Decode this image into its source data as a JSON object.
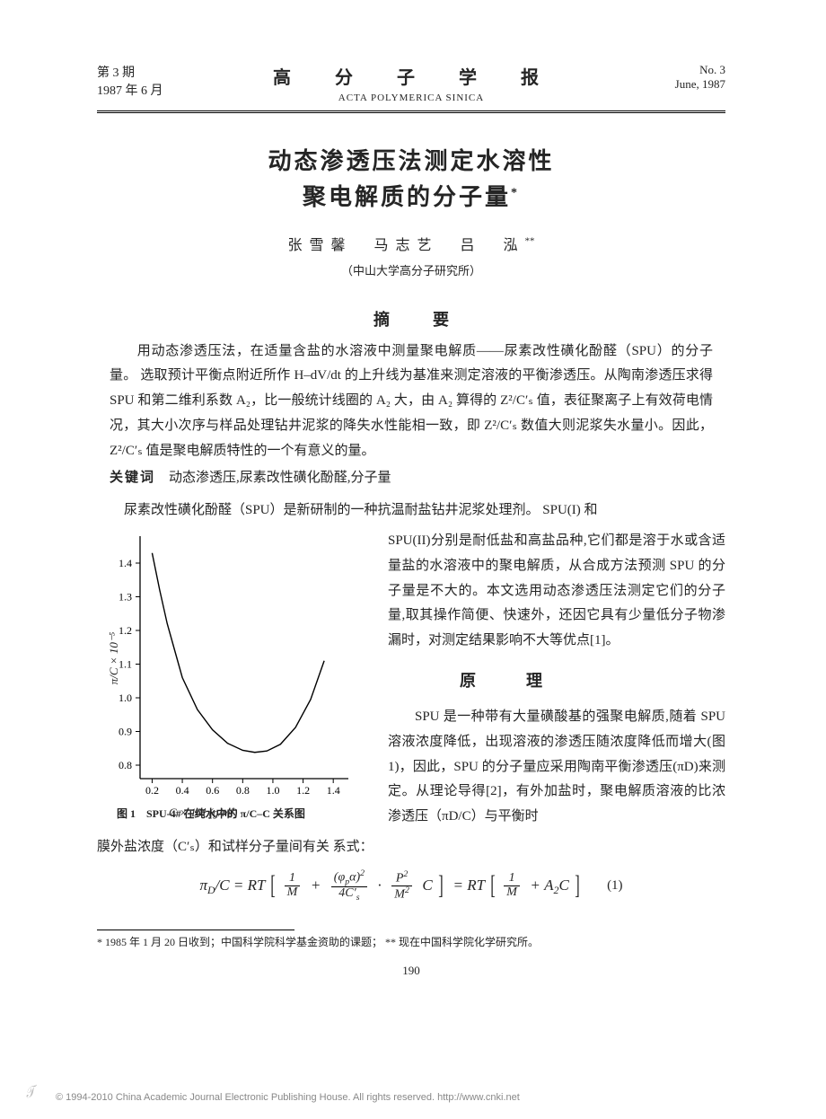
{
  "header": {
    "issue_cn": "第 3 期",
    "date_cn": "1987 年 6 月",
    "journal_cn": "高 分 子 学 报",
    "journal_en": "ACTA POLYMERICA SINICA",
    "issue_en": "No. 3",
    "date_en": "June, 1987"
  },
  "title_l1": "动态渗透压法测定水溶性",
  "title_l2": "聚电解质的分子量",
  "title_mark": "*",
  "authors": "张雪馨　马志艺　吕　泓",
  "author_sup": "**",
  "affiliation": "（中山大学高分子研究所）",
  "abstract_heading": "摘要",
  "abstract_body": "用动态渗透压法，在适量含盐的水溶液中测量聚电解质——尿素改性磺化酚醛（SPU）的分子量。 选取预计平衡点附近所作 H–dV/dt 的上升线为基准来测定溶液的平衡渗透压。从陶南渗透压求得 SPU 和第二维利系数 A₂，比一般统计线圈的 A₂ 大，由 A₂ 算得的 Z²/C′ₛ 值，表征聚离子上有效荷电情况，其大小次序与样品处理钻井泥浆的降失水性能相一致，即 Z²/C′ₛ 数值大则泥浆失水量小。因此，Z²/C′ₛ 值是聚电解质特性的一个有意义的量。",
  "keywords_label": "关键词",
  "keywords": "　动态渗透压,尿素改性磺化酚醛,分子量",
  "lead": "尿素改性磺化酚醛（SPU）是新研制的一种抗温耐盐钻井泥浆处理剂。 SPU(I) 和",
  "para1": "SPU(II)分别是耐低盐和高盐品种,它们都是溶于水或含适量盐的水溶液中的聚电解质，从合成方法预测 SPU 的分子量是不大的。本文选用动态渗透压法测定它们的分子量,取其操作简便、快速外，还因它具有少量低分子物渗漏时，对测定结果影响不大等优点[1]。",
  "section_heading": "原理",
  "para2": "SPU 是一种带有大量磺酸基的强聚电解质,随着 SPU 溶液浓度降低，出现溶液的渗透压随浓度降低而增大(图 1)，因此，SPU 的分子量应采用陶南平衡渗透压(πD)来测定。从理论导得[2]，有外加盐时，聚电解质溶液的比浓渗透压（πD/C）与平衡时",
  "membrane_line": "膜外盐浓度（C′ₛ）和试样分子量间有关 系式：",
  "eq_num": "(1)",
  "figure": {
    "caption": "图 1　SPU-4# 在纯水中的 π/C–C 关系图",
    "xlabel": "C × 10⁴ (g/ml)",
    "ylabel": "π/C × 10⁻⁵",
    "x_ticks": [
      0.2,
      0.4,
      0.6,
      0.8,
      1.0,
      1.2,
      1.4
    ],
    "y_ticks": [
      0.8,
      0.9,
      1.0,
      1.1,
      1.2,
      1.3,
      1.4
    ],
    "xlim": [
      0.12,
      1.5
    ],
    "ylim": [
      0.76,
      1.48
    ],
    "curve_pts": [
      [
        0.2,
        1.43
      ],
      [
        0.25,
        1.32
      ],
      [
        0.3,
        1.22
      ],
      [
        0.35,
        1.14
      ],
      [
        0.4,
        1.06
      ],
      [
        0.5,
        0.965
      ],
      [
        0.6,
        0.905
      ],
      [
        0.7,
        0.865
      ],
      [
        0.8,
        0.844
      ],
      [
        0.88,
        0.838
      ],
      [
        0.96,
        0.842
      ],
      [
        1.05,
        0.862
      ],
      [
        1.15,
        0.912
      ],
      [
        1.25,
        0.995
      ],
      [
        1.34,
        1.11
      ]
    ],
    "axis_color": "#000000",
    "curve_width": 1.4,
    "tick_font": 12,
    "bg": "#ffffff"
  },
  "footnote": "* 1985 年 1 月 20 日收到；中国科学院科学基金资助的课题； ** 现在中国科学院化学研究所。",
  "page_number": "190",
  "copyright": "© 1994-2010 China Academic Journal Electronic Publishing House. All rights reserved.    http://www.cnki.net"
}
